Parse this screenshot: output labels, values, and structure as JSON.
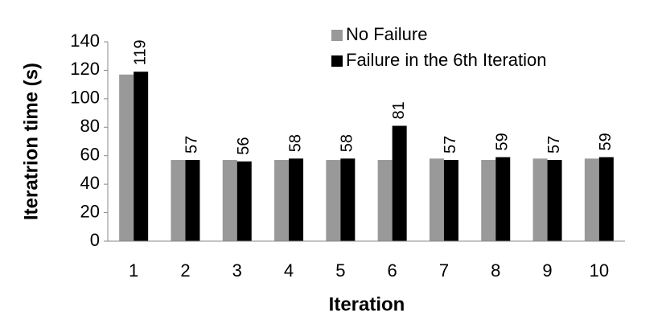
{
  "chart_data": {
    "type": "bar",
    "x_label": "Iteration",
    "y_label": "Iteratrion time (s)",
    "categories": [
      "1",
      "2",
      "3",
      "4",
      "5",
      "6",
      "7",
      "8",
      "9",
      "10"
    ],
    "series": [
      {
        "name": "No Failure",
        "color": "#999999",
        "values": [
          117,
          57,
          57,
          57,
          57,
          57,
          58,
          57,
          58,
          58
        ]
      },
      {
        "name": "Failure in the 6th Iteration",
        "color": "#000000",
        "values": [
          119,
          57,
          56,
          58,
          58,
          81,
          57,
          59,
          57,
          59
        ]
      }
    ],
    "data_labels_series": 1,
    "ylim": [
      0,
      140
    ],
    "yticks": [
      0,
      20,
      40,
      60,
      80,
      100,
      120,
      140
    ],
    "legend": "top-right"
  }
}
